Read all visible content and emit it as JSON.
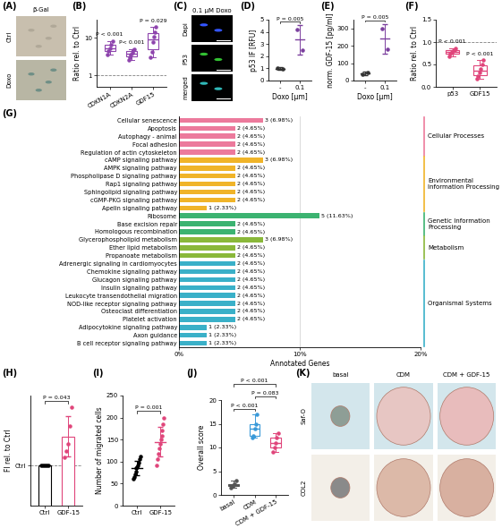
{
  "images": [
    {
      "panel": "(A)",
      "title": "β-Gal",
      "rows": [
        "Ctrl",
        "Doxo"
      ]
    },
    {
      "panel": "(C)",
      "title": "0.1 µM Doxo",
      "rows": [
        "Dapi",
        "P53",
        "merged"
      ]
    },
    {
      "panel": "(K)",
      "columns": [
        "basal",
        "CDM",
        "CDM + GDF-15"
      ],
      "rows": [
        "Saf-O",
        "COL2"
      ]
    }
  ],
  "chart_data": [
    {
      "panel": "(B)",
      "type": "box",
      "ylabel": "Ratio rel. to Ctrl",
      "categories": [
        "CDKN1A",
        "CDKN2A",
        "GDF15"
      ],
      "values": [
        [
          3.6,
          4.5,
          5.2,
          6.5,
          8.0
        ],
        [
          2.6,
          3.1,
          3.5,
          4.0,
          4.6,
          5.0
        ],
        [
          3.0,
          4.2,
          7.5,
          10.5,
          14.0,
          19.0
        ]
      ],
      "colors": [
        "#8e44ad",
        "#8e44ad",
        "#8e44ad"
      ],
      "log": "y",
      "ylim": [
        0.5,
        30
      ],
      "yticks": [
        1,
        10
      ],
      "reference_line": 1,
      "annotations": [
        {
          "text": "P < 0.001",
          "over": "CDKN1A"
        },
        {
          "text": "P< 0.001",
          "over": "CDKN2A"
        },
        {
          "text": "P = 0.029",
          "over": "GDF15"
        }
      ]
    },
    {
      "panel": "(D)",
      "type": "dot",
      "ylabel": "p53 IF [RFU]",
      "xlabel": "Doxo [µm]",
      "categories": [
        "-",
        "0.1"
      ],
      "values": [
        [
          1.05,
          0.92
        ],
        [
          4.2,
          2.5
        ]
      ],
      "means": [
        0.99,
        3.35
      ],
      "errors": [
        0.09,
        1.2
      ],
      "colors": [
        "#333333",
        "#7b3f9e"
      ],
      "ylim": [
        0,
        5
      ],
      "yticks": [
        0,
        1,
        2,
        3,
        4,
        5
      ],
      "annotations": [
        {
          "text": "P = 0.005",
          "between": [
            "-",
            "0.1"
          ]
        }
      ]
    },
    {
      "panel": "(E)",
      "type": "dot",
      "ylabel": "norm. GDF-15 [pg/ml]",
      "xlabel": "Doxo [µm]",
      "categories": [
        "-",
        "0.1"
      ],
      "values": [
        [
          35,
          48
        ],
        [
          300,
          180
        ]
      ],
      "means": [
        41,
        240
      ],
      "errors": [
        9,
        85
      ],
      "colors": [
        "#333333",
        "#7b3f9e"
      ],
      "ylim": [
        0,
        350
      ],
      "yticks": [
        0,
        100,
        200,
        300
      ],
      "annotations": [
        {
          "text": "P = 0.005",
          "between": [
            "-",
            "0.1"
          ]
        }
      ]
    },
    {
      "panel": "(F)",
      "type": "box",
      "ylabel": "Ratio rel. to Ctrl",
      "categories": [
        "p53",
        "GDF15"
      ],
      "values": [
        [
          0.68,
          0.74,
          0.78,
          0.8,
          0.83,
          0.86
        ],
        [
          0.18,
          0.25,
          0.32,
          0.4,
          0.5,
          0.6
        ]
      ],
      "colors": [
        "#e0457b",
        "#e0457b"
      ],
      "ylim": [
        0,
        1.5
      ],
      "yticks": [
        {
          "value": 0,
          "label": "0.0"
        },
        {
          "value": 0.5,
          "label": "0.5"
        },
        {
          "value": 1,
          "label": "1.0"
        },
        {
          "value": 1.5,
          "label": "1.5"
        }
      ],
      "reference_line": 1,
      "annotations": [
        {
          "text": "P < 0.001",
          "over": "p53"
        },
        {
          "text": "P < 0.001",
          "over": "GDF15"
        }
      ]
    },
    {
      "panel": "(G)",
      "type": "bar",
      "orientation": "horizontal",
      "xlabel": "Annotated Genes",
      "xlim": [
        0,
        20
      ],
      "xticks": [
        {
          "value": 0,
          "label": "0%"
        },
        {
          "value": 10,
          "label": "10%"
        },
        {
          "value": 20,
          "label": "20%"
        }
      ],
      "grid": true,
      "data_labels": true,
      "groups": [
        {
          "name": "Cellular Processes",
          "color": "#ec7a9c",
          "categories": [
            "Cellular senescence",
            "Apoptosis",
            "Autophagy - animal",
            "Focal adhesion",
            "Regulation of actin cytoskeleton"
          ],
          "values": [
            6.98,
            4.65,
            4.65,
            4.65,
            4.65
          ],
          "value_labels": [
            "3 (6.98%)",
            "2 (4.65%)",
            "2 (4.65%)",
            "2 (4.65%)",
            "2 (4.65%)"
          ]
        },
        {
          "name": "Environmental Information Processing",
          "color": "#f0b429",
          "categories": [
            "cAMP signaling pathway",
            "AMPK signaling pathway",
            "Phospholipase D signaling pathway",
            "Rap1 signaling pathway",
            "Sphingolipid signaling pathway",
            "cGMP-PKG signaling pathway",
            "Apelin signaling pathway"
          ],
          "values": [
            6.98,
            4.65,
            4.65,
            4.65,
            4.65,
            4.65,
            2.33
          ],
          "value_labels": [
            "3 (6.98%)",
            "2 (4.65%)",
            "2 (4.65%)",
            "2 (4.65%)",
            "2 (4.65%)",
            "2 (4.65%)",
            "1 (2.33%)"
          ]
        },
        {
          "name": "Genetic Information Processing",
          "color": "#3cb371",
          "categories": [
            "Ribosome",
            "Base excision repair",
            "Homologous recombination"
          ],
          "values": [
            11.63,
            4.65,
            4.65
          ],
          "value_labels": [
            "5 (11.63%)",
            "2 (4.65%)",
            "2 (4.65%)"
          ]
        },
        {
          "name": "Metabolism",
          "color": "#8ab83a",
          "categories": [
            "Glycerophospholipid metabolism",
            "Ether lipid metabolism",
            "Propanoate metabolism"
          ],
          "values": [
            6.98,
            4.65,
            4.65
          ],
          "value_labels": [
            "3 (6.98%)",
            "2 (4.65%)",
            "2 (4.65%)"
          ]
        },
        {
          "name": "Organismal Systems",
          "color": "#3ab0c8",
          "categories": [
            "Adrenergic signaling in cardiomyocytes",
            "Chemokine signaling pathway",
            "Glucagon signaling pathway",
            "Insulin signaling pathway",
            "Leukocyte transendothelial migration",
            "NOD-like receptor signaling pathway",
            "Osteoclast differentiation",
            "Platelet activation",
            "Adipocytokine signaling pathway",
            "Axon guidance",
            "B cell receptor signaling pathway"
          ],
          "values": [
            4.65,
            4.65,
            4.65,
            4.65,
            4.65,
            4.65,
            4.65,
            4.65,
            2.33,
            2.33,
            2.33
          ],
          "value_labels": [
            "2 (4.65%)",
            "2 (4.65%)",
            "2 (4.65%)",
            "2 (4.65%)",
            "2 (4.65%)",
            "2 (4.65%)",
            "2 (4.65%)",
            "2 (4.65%)",
            "1 (2.33%)",
            "1 (2.33%)",
            "1 (2.33%)"
          ]
        }
      ]
    },
    {
      "panel": "(H)",
      "type": "bar",
      "ylabel": "FI rel. to Ctrl",
      "categories": [
        "Ctrl",
        "GDF-15"
      ],
      "values": [
        [
          1,
          1,
          1,
          1,
          1
        ],
        [
          1.08,
          1.15,
          1.22,
          1.4,
          1.58
        ]
      ],
      "means": [
        1,
        1.29
      ],
      "errors": [
        0,
        0.2
      ],
      "colors": [
        "#000000",
        "#e0457b"
      ],
      "ylim": [
        0.6,
        1.7
      ],
      "yticks": [
        {
          "value": 1,
          "label": "Ctrl"
        }
      ],
      "reference_line": 1,
      "annotations": [
        {
          "text": "P = 0.043",
          "between": [
            "Ctrl",
            "GDF-15"
          ]
        }
      ]
    },
    {
      "panel": "(I)",
      "type": "dot",
      "ylabel": "Number of migrated cells",
      "categories": [
        "Ctrl",
        "GDF-15"
      ],
      "values": [
        [
          60,
          65,
          72,
          78,
          85,
          88,
          92,
          98,
          105,
          112
        ],
        [
          92,
          105,
          118,
          130,
          140,
          150,
          158,
          170,
          185,
          200
        ]
      ],
      "means": [
        85.5,
        144.8
      ],
      "errors": [
        17,
        34
      ],
      "colors": [
        "#000000",
        "#e0457b"
      ],
      "ylim": [
        0,
        250
      ],
      "yticks": [
        0,
        50,
        100,
        150,
        200,
        250
      ],
      "annotations": [
        {
          "text": "P = 0.001",
          "between": [
            "Ctrl",
            "GDF-15"
          ]
        }
      ]
    },
    {
      "panel": "(J)",
      "type": "box",
      "ylabel": "Overall score",
      "categories": [
        "basal",
        "CDM",
        "CDM + GDF-15"
      ],
      "values": [
        [
          1.5,
          1.8,
          2.0,
          2.3,
          3.0
        ],
        [
          12,
          12.5,
          14,
          15,
          17
        ],
        [
          9,
          10,
          11,
          12,
          13
        ]
      ],
      "colors": [
        "#555555",
        "#3a9ad9",
        "#e0457b"
      ],
      "ylim": [
        0,
        20
      ],
      "yticks": [
        0,
        5,
        10,
        15,
        20
      ],
      "annotations": [
        {
          "text": "P < 0.001",
          "between": [
            "basal",
            "CDM"
          ]
        },
        {
          "text": "P = 0.083",
          "between": [
            "CDM",
            "CDM + GDF-15"
          ]
        },
        {
          "text": "P < 0.001",
          "between": [
            "basal",
            "CDM + GDF-15"
          ]
        }
      ]
    }
  ]
}
